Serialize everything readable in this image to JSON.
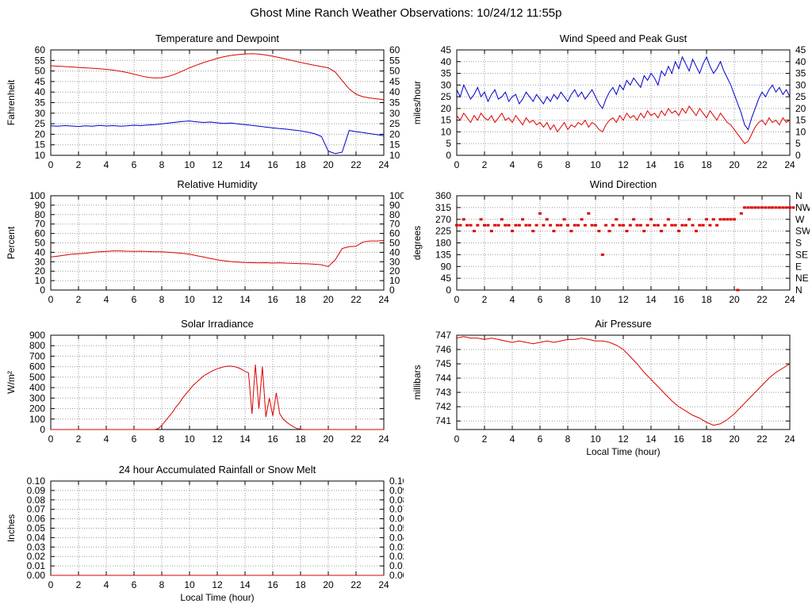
{
  "page": {
    "title": "Ghost Mine Ranch Weather Observations: 10/24/12 11:55p"
  },
  "colors": {
    "red": "#dd0000",
    "blue": "#0000cc",
    "grid": "#9a9a9a",
    "frame": "#000000"
  },
  "chart_data": [
    {
      "id": "temperature-dewpoint",
      "title": "Temperature and Dewpoint",
      "type": "line",
      "ylabel": "Fahrenheit",
      "xlabel": "",
      "xlim": [
        0,
        24
      ],
      "xticks": [
        0,
        2,
        4,
        6,
        8,
        10,
        12,
        14,
        16,
        18,
        20,
        22,
        24
      ],
      "ylim": [
        10,
        60
      ],
      "yticks": [
        10,
        15,
        20,
        25,
        30,
        35,
        40,
        45,
        50,
        55,
        60
      ],
      "right_axis": "mirror",
      "grid": true,
      "series": [
        {
          "name": "Temperature",
          "color": "#dd0000",
          "style": "line",
          "x_start": 0,
          "x_step": 0.5,
          "y": [
            52.5,
            52.3,
            52.1,
            51.9,
            51.7,
            51.5,
            51.3,
            51.1,
            50.8,
            50.4,
            49.9,
            49.3,
            48.5,
            47.7,
            47.0,
            46.7,
            46.8,
            47.5,
            48.6,
            50.0,
            51.5,
            52.8,
            54.0,
            55.0,
            56.0,
            56.8,
            57.4,
            57.8,
            58.1,
            58.2,
            58.0,
            57.6,
            57.0,
            56.3,
            55.6,
            54.8,
            54.1,
            53.4,
            52.7,
            52.1,
            51.5,
            49.5,
            45.5,
            41.5,
            39.0,
            37.8,
            37.2,
            36.8,
            36.4
          ]
        },
        {
          "name": "Dewpoint",
          "color": "#0000cc",
          "style": "line",
          "x_start": 0,
          "x_step": 0.5,
          "y": [
            24.0,
            23.8,
            24.1,
            23.9,
            23.7,
            24.0,
            23.8,
            24.2,
            23.9,
            24.1,
            23.8,
            24.0,
            24.3,
            24.1,
            24.4,
            24.6,
            24.9,
            25.3,
            25.7,
            26.1,
            26.3,
            25.9,
            25.6,
            25.8,
            25.4,
            25.1,
            25.3,
            24.9,
            24.6,
            24.2,
            23.8,
            23.4,
            23.0,
            22.7,
            22.4,
            22.0,
            21.6,
            21.0,
            20.3,
            19.0,
            12.0,
            10.8,
            11.5,
            21.8,
            21.2,
            20.8,
            20.3,
            19.8,
            19.3
          ]
        }
      ]
    },
    {
      "id": "wind-speed-gust",
      "title": "Wind Speed and Peak Gust",
      "type": "line",
      "ylabel": "miles/hour",
      "xlabel": "",
      "xlim": [
        0,
        24
      ],
      "xticks": [
        0,
        2,
        4,
        6,
        8,
        10,
        12,
        14,
        16,
        18,
        20,
        22,
        24
      ],
      "ylim": [
        0,
        45
      ],
      "yticks": [
        0,
        5,
        10,
        15,
        20,
        25,
        30,
        35,
        40,
        45
      ],
      "right_axis": "mirror",
      "grid": true,
      "series": [
        {
          "name": "Peak Gust",
          "color": "#0000cc",
          "style": "line",
          "x_start": 0,
          "x_step": 0.25,
          "y": [
            28,
            25,
            30,
            27,
            24,
            26,
            29,
            25,
            27,
            23,
            26,
            28,
            24,
            25,
            27,
            23,
            25,
            26,
            22,
            24,
            27,
            25,
            23,
            26,
            24,
            22,
            25,
            23,
            26,
            24,
            27,
            25,
            23,
            26,
            28,
            25,
            27,
            24,
            26,
            28,
            25,
            22,
            20,
            24,
            27,
            29,
            26,
            30,
            28,
            32,
            30,
            33,
            31,
            29,
            34,
            32,
            35,
            33,
            30,
            36,
            34,
            38,
            35,
            40,
            37,
            42,
            39,
            36,
            41,
            38,
            35,
            39,
            42,
            38,
            35,
            37,
            40,
            36,
            33,
            30,
            26,
            22,
            18,
            13,
            11,
            16,
            20,
            24,
            27,
            25,
            28,
            30,
            27,
            29,
            26,
            28,
            25
          ]
        },
        {
          "name": "Wind Speed",
          "color": "#dd0000",
          "style": "line",
          "x_start": 0,
          "x_step": 0.25,
          "y": [
            17,
            15,
            18,
            16,
            14,
            17,
            15,
            18,
            16,
            15,
            17,
            14,
            16,
            18,
            15,
            16,
            14,
            17,
            15,
            13,
            16,
            14,
            15,
            13,
            14,
            12,
            14,
            11,
            13,
            10,
            12,
            14,
            11,
            13,
            12,
            14,
            13,
            15,
            12,
            14,
            13,
            11,
            10,
            13,
            15,
            16,
            14,
            17,
            15,
            18,
            16,
            17,
            15,
            18,
            16,
            19,
            17,
            18,
            16,
            19,
            17,
            20,
            18,
            19,
            17,
            20,
            18,
            21,
            19,
            17,
            20,
            18,
            16,
            19,
            17,
            15,
            18,
            16,
            14,
            13,
            11,
            9,
            7,
            5,
            6,
            9,
            12,
            14,
            15,
            13,
            16,
            14,
            15,
            13,
            16,
            14,
            15
          ]
        }
      ]
    },
    {
      "id": "relative-humidity",
      "title": "Relative Humidity",
      "type": "line",
      "ylabel": "Percent",
      "xlabel": "",
      "xlim": [
        0,
        24
      ],
      "xticks": [
        0,
        2,
        4,
        6,
        8,
        10,
        12,
        14,
        16,
        18,
        20,
        22,
        24
      ],
      "ylim": [
        0,
        100
      ],
      "yticks": [
        0,
        10,
        20,
        30,
        40,
        50,
        60,
        70,
        80,
        90,
        100
      ],
      "right_axis": "mirror",
      "grid": true,
      "series": [
        {
          "name": "Relative Humidity",
          "color": "#dd0000",
          "style": "line",
          "x_start": 0,
          "x_step": 0.5,
          "y": [
            35,
            36,
            37,
            38,
            38.5,
            39,
            40,
            40.5,
            41,
            41.5,
            41.5,
            41.2,
            41.0,
            41.2,
            40.8,
            40.5,
            40.5,
            40.0,
            39.5,
            38.8,
            38.0,
            36.5,
            35.0,
            33.5,
            32.0,
            31.0,
            30.2,
            29.6,
            29.2,
            29.0,
            28.8,
            29.0,
            28.6,
            28.9,
            28.5,
            28.2,
            28.0,
            27.8,
            27.4,
            26.8,
            25.0,
            32.0,
            44.0,
            46.0,
            46.5,
            51.0,
            52.0,
            52.0,
            52.5
          ]
        }
      ]
    },
    {
      "id": "wind-direction",
      "title": "Wind Direction",
      "type": "scatter",
      "ylabel": "degrees",
      "xlabel": "",
      "xlim": [
        0,
        24
      ],
      "xticks": [
        0,
        2,
        4,
        6,
        8,
        10,
        12,
        14,
        16,
        18,
        20,
        22,
        24
      ],
      "ylim": [
        0,
        360
      ],
      "yticks": [
        0,
        45,
        90,
        135,
        180,
        225,
        270,
        315,
        360
      ],
      "right_axis": "compass",
      "right_tick_labels": [
        "N",
        "NE",
        "E",
        "SE",
        "S",
        "SW",
        "W",
        "NW",
        "N"
      ],
      "grid": true,
      "series": [
        {
          "name": "Wind Direction",
          "color": "#dd0000",
          "style": "points",
          "x_start": 0,
          "x_step": 0.25,
          "y": [
            247.5,
            247.5,
            270,
            247.5,
            247.5,
            225,
            247.5,
            270,
            247.5,
            247.5,
            225,
            247.5,
            247.5,
            270,
            247.5,
            247.5,
            225,
            247.5,
            247.5,
            270,
            247.5,
            247.5,
            225,
            247.5,
            292.5,
            247.5,
            270,
            247.5,
            225,
            247.5,
            247.5,
            270,
            247.5,
            225,
            247.5,
            247.5,
            270,
            247.5,
            292.5,
            247.5,
            247.5,
            225,
            135,
            247.5,
            225,
            247.5,
            270,
            247.5,
            247.5,
            225,
            247.5,
            270,
            247.5,
            247.5,
            225,
            247.5,
            270,
            247.5,
            247.5,
            225,
            247.5,
            270,
            247.5,
            247.5,
            225,
            247.5,
            247.5,
            270,
            247.5,
            225,
            247.5,
            247.5,
            270,
            247.5,
            270,
            247.5,
            270,
            270,
            270,
            270,
            270,
            0,
            292.5,
            315,
            315,
            315,
            315,
            315,
            315,
            315,
            315,
            315,
            315,
            315,
            315,
            315,
            315,
            315
          ]
        }
      ]
    },
    {
      "id": "solar-irradiance",
      "title": "Solar Irradiance",
      "type": "line",
      "ylabel": "W/m²",
      "xlabel": "",
      "xlim": [
        0,
        24
      ],
      "xticks": [
        0,
        2,
        4,
        6,
        8,
        10,
        12,
        14,
        16,
        18,
        20,
        22,
        24
      ],
      "ylim": [
        0,
        900
      ],
      "yticks": [
        0,
        100,
        200,
        300,
        400,
        500,
        600,
        700,
        800,
        900
      ],
      "right_axis": "none",
      "grid": true,
      "series": [
        {
          "name": "Solar Irradiance",
          "color": "#dd0000",
          "style": "line",
          "x_start": 0,
          "x_step": 0.25,
          "y": [
            0,
            0,
            0,
            0,
            0,
            0,
            0,
            0,
            0,
            0,
            0,
            0,
            0,
            0,
            0,
            0,
            0,
            0,
            0,
            0,
            0,
            0,
            0,
            0,
            0,
            0,
            0,
            0,
            0,
            0,
            0,
            10,
            40,
            80,
            120,
            160,
            210,
            250,
            300,
            340,
            380,
            420,
            450,
            480,
            510,
            530,
            550,
            565,
            580,
            590,
            600,
            605,
            605,
            600,
            590,
            575,
            555,
            540,
            150,
            620,
            200,
            600,
            120,
            300,
            130,
            350,
            150,
            100,
            70,
            45,
            25,
            10,
            3,
            0,
            0,
            0,
            0,
            0,
            0,
            0,
            0,
            0,
            0,
            0,
            0,
            0,
            0,
            0,
            0,
            0,
            0,
            0,
            0,
            0,
            0,
            0,
            0
          ]
        }
      ]
    },
    {
      "id": "air-pressure",
      "title": "Air Pressure",
      "type": "line",
      "ylabel": "millibars",
      "xlabel": "Local Time (hour)",
      "xlim": [
        0,
        24
      ],
      "xticks": [
        0,
        2,
        4,
        6,
        8,
        10,
        12,
        14,
        16,
        18,
        20,
        22,
        24
      ],
      "ylim": [
        740.4,
        747
      ],
      "yticks": [
        741,
        742,
        743,
        744,
        745,
        746,
        747
      ],
      "right_axis": "none",
      "grid": true,
      "series": [
        {
          "name": "Air Pressure",
          "color": "#dd0000",
          "style": "line",
          "x_start": 0,
          "x_step": 0.5,
          "y": [
            746.8,
            746.9,
            746.8,
            746.8,
            746.7,
            746.8,
            746.7,
            746.6,
            746.5,
            746.6,
            746.5,
            746.4,
            746.5,
            746.6,
            746.5,
            746.6,
            746.7,
            746.7,
            746.8,
            746.7,
            746.6,
            746.6,
            746.5,
            746.3,
            746.0,
            745.5,
            745.0,
            744.4,
            743.9,
            743.4,
            742.9,
            742.4,
            742.0,
            741.7,
            741.4,
            741.2,
            740.9,
            740.7,
            740.8,
            741.1,
            741.5,
            742.0,
            742.5,
            743.0,
            743.5,
            744.0,
            744.4,
            744.7,
            745.0
          ]
        }
      ]
    },
    {
      "id": "rainfall",
      "title": "24 hour Accumulated Rainfall or Snow Melt",
      "type": "line",
      "ylabel": "Inches",
      "xlabel": "Local Time (hour)",
      "xlim": [
        0,
        24
      ],
      "xticks": [
        0,
        2,
        4,
        6,
        8,
        10,
        12,
        14,
        16,
        18,
        20,
        22,
        24
      ],
      "ylim": [
        0,
        0.1
      ],
      "yticks": [
        0,
        0.01,
        0.02,
        0.03,
        0.04,
        0.05,
        0.06,
        0.07,
        0.08,
        0.09,
        0.1
      ],
      "ytick_labels": [
        "0.00",
        "0.01",
        "0.02",
        "0.03",
        "0.04",
        "0.05",
        "0.06",
        "0.07",
        "0.08",
        "0.09",
        "0.10"
      ],
      "right_axis": "mirror",
      "grid": true,
      "series": [
        {
          "name": "Accumulated Rainfall",
          "color": "#dd0000",
          "style": "line",
          "x_start": 0,
          "x_step": 1,
          "y": [
            0,
            0,
            0,
            0,
            0,
            0,
            0,
            0,
            0,
            0,
            0,
            0,
            0,
            0,
            0,
            0,
            0,
            0,
            0,
            0,
            0,
            0,
            0,
            0,
            0
          ]
        }
      ]
    }
  ]
}
